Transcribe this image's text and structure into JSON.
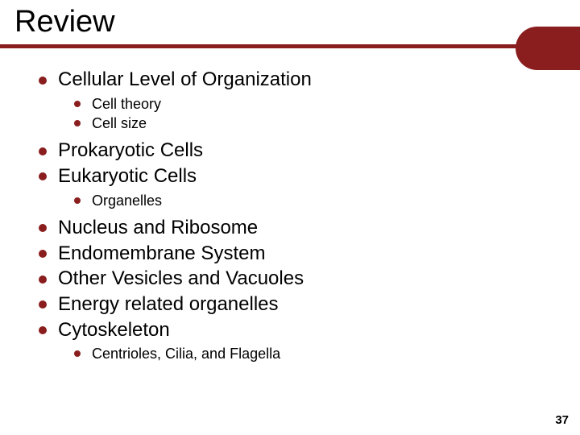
{
  "colors": {
    "accent": "#8a1e1e",
    "background": "#ffffff",
    "text": "#000000"
  },
  "title": "Review",
  "page_number": "37",
  "outline": {
    "groups": [
      {
        "items": [
          {
            "label": "Cellular Level of Organization",
            "sub": [
              "Cell theory",
              "Cell size"
            ]
          }
        ]
      },
      {
        "items": [
          {
            "label": "Prokaryotic Cells"
          },
          {
            "label": "Eukaryotic Cells",
            "sub": [
              "Organelles"
            ]
          }
        ]
      },
      {
        "items": [
          {
            "label": "Nucleus and Ribosome"
          },
          {
            "label": "Endomembrane System"
          },
          {
            "label": "Other Vesicles and Vacuoles"
          },
          {
            "label": "Energy related organelles"
          },
          {
            "label": "Cytoskeleton",
            "sub": [
              "Centrioles, Cilia, and Flagella"
            ]
          }
        ]
      }
    ]
  }
}
